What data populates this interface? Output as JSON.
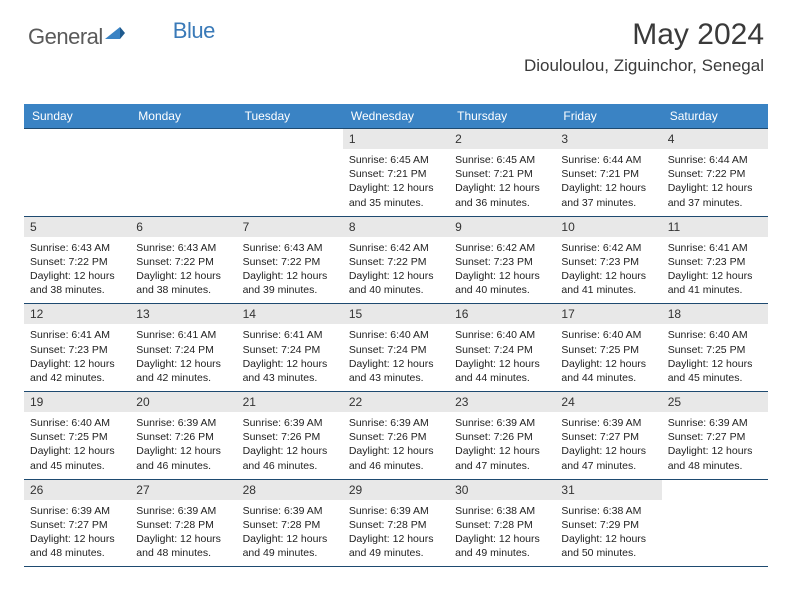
{
  "logo": {
    "general": "General",
    "blue": "Blue",
    "mark_color": "#3a83c4"
  },
  "header": {
    "title": "May 2024",
    "location": "Diouloulou, Ziguinchor, Senegal"
  },
  "colors": {
    "header_bg": "#3a83c4",
    "header_text": "#ffffff",
    "daynum_bg": "#e8e8e8",
    "border": "#1e4a70"
  },
  "day_names": [
    "Sunday",
    "Monday",
    "Tuesday",
    "Wednesday",
    "Thursday",
    "Friday",
    "Saturday"
  ],
  "weeks": [
    [
      null,
      null,
      null,
      {
        "n": "1",
        "r": "6:45 AM",
        "s": "7:21 PM",
        "d": "12 hours and 35 minutes."
      },
      {
        "n": "2",
        "r": "6:45 AM",
        "s": "7:21 PM",
        "d": "12 hours and 36 minutes."
      },
      {
        "n": "3",
        "r": "6:44 AM",
        "s": "7:21 PM",
        "d": "12 hours and 37 minutes."
      },
      {
        "n": "4",
        "r": "6:44 AM",
        "s": "7:22 PM",
        "d": "12 hours and 37 minutes."
      }
    ],
    [
      {
        "n": "5",
        "r": "6:43 AM",
        "s": "7:22 PM",
        "d": "12 hours and 38 minutes."
      },
      {
        "n": "6",
        "r": "6:43 AM",
        "s": "7:22 PM",
        "d": "12 hours and 38 minutes."
      },
      {
        "n": "7",
        "r": "6:43 AM",
        "s": "7:22 PM",
        "d": "12 hours and 39 minutes."
      },
      {
        "n": "8",
        "r": "6:42 AM",
        "s": "7:22 PM",
        "d": "12 hours and 40 minutes."
      },
      {
        "n": "9",
        "r": "6:42 AM",
        "s": "7:23 PM",
        "d": "12 hours and 40 minutes."
      },
      {
        "n": "10",
        "r": "6:42 AM",
        "s": "7:23 PM",
        "d": "12 hours and 41 minutes."
      },
      {
        "n": "11",
        "r": "6:41 AM",
        "s": "7:23 PM",
        "d": "12 hours and 41 minutes."
      }
    ],
    [
      {
        "n": "12",
        "r": "6:41 AM",
        "s": "7:23 PM",
        "d": "12 hours and 42 minutes."
      },
      {
        "n": "13",
        "r": "6:41 AM",
        "s": "7:24 PM",
        "d": "12 hours and 42 minutes."
      },
      {
        "n": "14",
        "r": "6:41 AM",
        "s": "7:24 PM",
        "d": "12 hours and 43 minutes."
      },
      {
        "n": "15",
        "r": "6:40 AM",
        "s": "7:24 PM",
        "d": "12 hours and 43 minutes."
      },
      {
        "n": "16",
        "r": "6:40 AM",
        "s": "7:24 PM",
        "d": "12 hours and 44 minutes."
      },
      {
        "n": "17",
        "r": "6:40 AM",
        "s": "7:25 PM",
        "d": "12 hours and 44 minutes."
      },
      {
        "n": "18",
        "r": "6:40 AM",
        "s": "7:25 PM",
        "d": "12 hours and 45 minutes."
      }
    ],
    [
      {
        "n": "19",
        "r": "6:40 AM",
        "s": "7:25 PM",
        "d": "12 hours and 45 minutes."
      },
      {
        "n": "20",
        "r": "6:39 AM",
        "s": "7:26 PM",
        "d": "12 hours and 46 minutes."
      },
      {
        "n": "21",
        "r": "6:39 AM",
        "s": "7:26 PM",
        "d": "12 hours and 46 minutes."
      },
      {
        "n": "22",
        "r": "6:39 AM",
        "s": "7:26 PM",
        "d": "12 hours and 46 minutes."
      },
      {
        "n": "23",
        "r": "6:39 AM",
        "s": "7:26 PM",
        "d": "12 hours and 47 minutes."
      },
      {
        "n": "24",
        "r": "6:39 AM",
        "s": "7:27 PM",
        "d": "12 hours and 47 minutes."
      },
      {
        "n": "25",
        "r": "6:39 AM",
        "s": "7:27 PM",
        "d": "12 hours and 48 minutes."
      }
    ],
    [
      {
        "n": "26",
        "r": "6:39 AM",
        "s": "7:27 PM",
        "d": "12 hours and 48 minutes."
      },
      {
        "n": "27",
        "r": "6:39 AM",
        "s": "7:28 PM",
        "d": "12 hours and 48 minutes."
      },
      {
        "n": "28",
        "r": "6:39 AM",
        "s": "7:28 PM",
        "d": "12 hours and 49 minutes."
      },
      {
        "n": "29",
        "r": "6:39 AM",
        "s": "7:28 PM",
        "d": "12 hours and 49 minutes."
      },
      {
        "n": "30",
        "r": "6:38 AM",
        "s": "7:28 PM",
        "d": "12 hours and 49 minutes."
      },
      {
        "n": "31",
        "r": "6:38 AM",
        "s": "7:29 PM",
        "d": "12 hours and 50 minutes."
      },
      null
    ]
  ],
  "labels": {
    "sunrise": "Sunrise:",
    "sunset": "Sunset:",
    "daylight": "Daylight:"
  }
}
